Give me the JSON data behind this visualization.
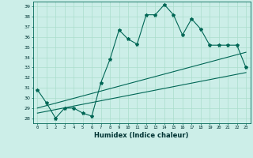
{
  "xlabel": "Humidex (Indice chaleur)",
  "bg_color": "#cceee8",
  "grid_color": "#aaddcc",
  "line_color": "#006655",
  "ylim": [
    27.5,
    39.5
  ],
  "xlim": [
    -0.5,
    23.5
  ],
  "yticks": [
    28,
    29,
    30,
    31,
    32,
    33,
    34,
    35,
    36,
    37,
    38,
    39
  ],
  "xticks": [
    0,
    1,
    2,
    3,
    4,
    5,
    6,
    7,
    8,
    9,
    10,
    11,
    12,
    13,
    14,
    15,
    16,
    17,
    18,
    19,
    20,
    21,
    22,
    23
  ],
  "series": [
    {
      "x": [
        0,
        1,
        2,
        3,
        4,
        5,
        6,
        7,
        8,
        9,
        10,
        11,
        12,
        13,
        14,
        15,
        16,
        17,
        18,
        19,
        20,
        21,
        22,
        23
      ],
      "y": [
        30.8,
        29.5,
        28.0,
        29.0,
        29.0,
        28.5,
        28.2,
        31.5,
        33.8,
        36.7,
        35.8,
        35.3,
        38.2,
        38.2,
        39.2,
        38.2,
        36.2,
        37.8,
        36.8,
        35.2,
        35.2,
        35.2,
        35.2,
        33.0
      ],
      "marker": true
    },
    {
      "x": [
        0,
        23
      ],
      "y": [
        29.0,
        34.5
      ],
      "marker": false
    },
    {
      "x": [
        0,
        23
      ],
      "y": [
        28.5,
        32.5
      ],
      "marker": false
    }
  ]
}
